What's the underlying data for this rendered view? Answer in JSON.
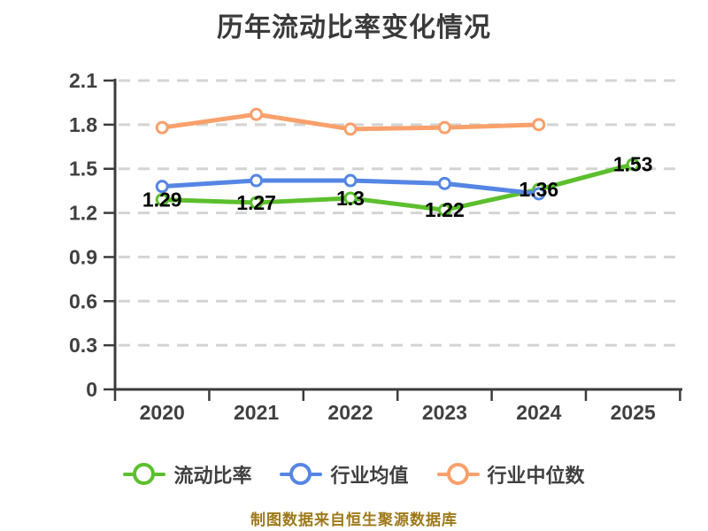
{
  "title": "历年流动比率变化情况",
  "footer": {
    "source_text": "制图数据来自恒生聚源数据库"
  },
  "colors": {
    "background": "#FFFFFF",
    "title": "#3A3A3A",
    "axis": "#3C3C3C",
    "tick_label": "#404040",
    "grid": "#D4D4D4",
    "data_label": "#000000",
    "footer": "#9E7918"
  },
  "chart_data": {
    "type": "line",
    "title": "历年流动比率变化情况",
    "categories": [
      "2020",
      "2021",
      "2022",
      "2023",
      "2024",
      "2025"
    ],
    "xlabel": "",
    "ylabel": "",
    "ylim": [
      0,
      2.1
    ],
    "ytick_step": 0.3,
    "ytick_labels": [
      "0",
      "0.3",
      "0.6",
      "0.9",
      "1.2",
      "1.5",
      "1.8",
      "2.1"
    ],
    "grid": "horizontal-dashed",
    "legend_position": "bottom",
    "series": [
      {
        "id": "current-ratio",
        "name": "流动比率",
        "color": "#5CBF2D",
        "values": [
          1.29,
          1.27,
          1.3,
          1.22,
          1.36,
          1.53
        ],
        "point_labels": [
          "1.29",
          "1.27",
          "1.3",
          "1.22",
          "1.36",
          "1.53"
        ]
      },
      {
        "id": "industry-mean",
        "name": "行业均值",
        "color": "#5586E4",
        "values": [
          1.38,
          1.42,
          1.42,
          1.4,
          1.33
        ],
        "point_labels": []
      },
      {
        "id": "industry-median",
        "name": "行业中位数",
        "color": "#F9A06B",
        "values": [
          1.78,
          1.87,
          1.77,
          1.78,
          1.8
        ],
        "point_labels": []
      }
    ]
  }
}
